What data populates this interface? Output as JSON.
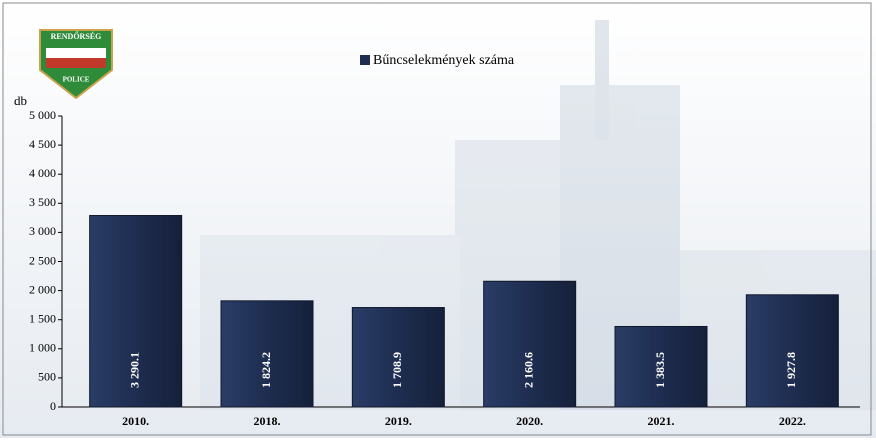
{
  "chart_data": {
    "type": "bar",
    "logo_texts": [
      "RENDŐRSÉG",
      "POLICE"
    ],
    "y_label": "db",
    "legend": "Bűncselekmények száma",
    "categories": [
      "2010.",
      "2018.",
      "2019.",
      "2020.",
      "2021.",
      "2022."
    ],
    "values": [
      3290.1,
      1824.2,
      1708.9,
      2160.6,
      1383.5,
      1927.8
    ],
    "value_labels": [
      "3 290.1",
      "1 824.2",
      "1 708.9",
      "2 160.6",
      "1 383.5",
      "1 927.8"
    ],
    "color": "#1e2d50",
    "ylim": [
      0,
      5000
    ],
    "yticks": [
      0,
      500,
      {
        "value": 1000,
        "label": "1 000"
      },
      {
        "value": 1500,
        "label": "1 500"
      },
      {
        "value": 2000,
        "label": "2 000"
      },
      {
        "value": 2500,
        "label": "2 500"
      },
      {
        "value": 3000,
        "label": "3 000"
      },
      {
        "value": 3500,
        "label": "3 500"
      },
      {
        "value": 4000,
        "label": "4 000"
      },
      {
        "value": 4500,
        "label": "4 500"
      },
      {
        "value": 5000,
        "label": "5 000"
      }
    ]
  }
}
